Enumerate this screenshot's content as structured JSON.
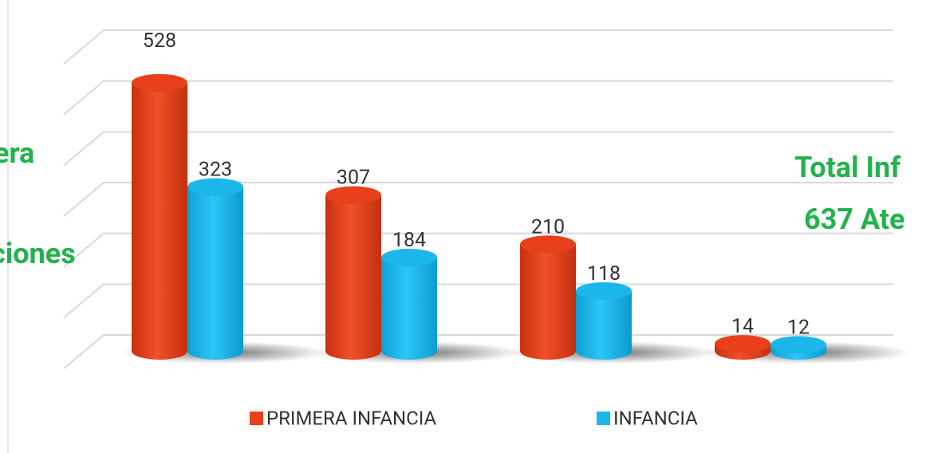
{
  "chart_data": {
    "type": "bar3d",
    "categories": [
      null,
      null,
      null,
      null
    ],
    "series": [
      {
        "name": "PRIMERA INFANCIA",
        "color": "#e8401a",
        "values": [
          528,
          307,
          210,
          14
        ]
      },
      {
        "name": "INFANCIA",
        "color": "#1bb6ea",
        "values": [
          323,
          184,
          118,
          12
        ]
      }
    ],
    "ylim": [
      0,
      600
    ],
    "yticks": [
      0,
      100,
      200,
      300,
      400,
      500,
      600
    ],
    "grid": true,
    "legend": "bottom",
    "annotations": [
      "era",
      "ciones",
      "Total Inf",
      "637 Ate"
    ]
  }
}
